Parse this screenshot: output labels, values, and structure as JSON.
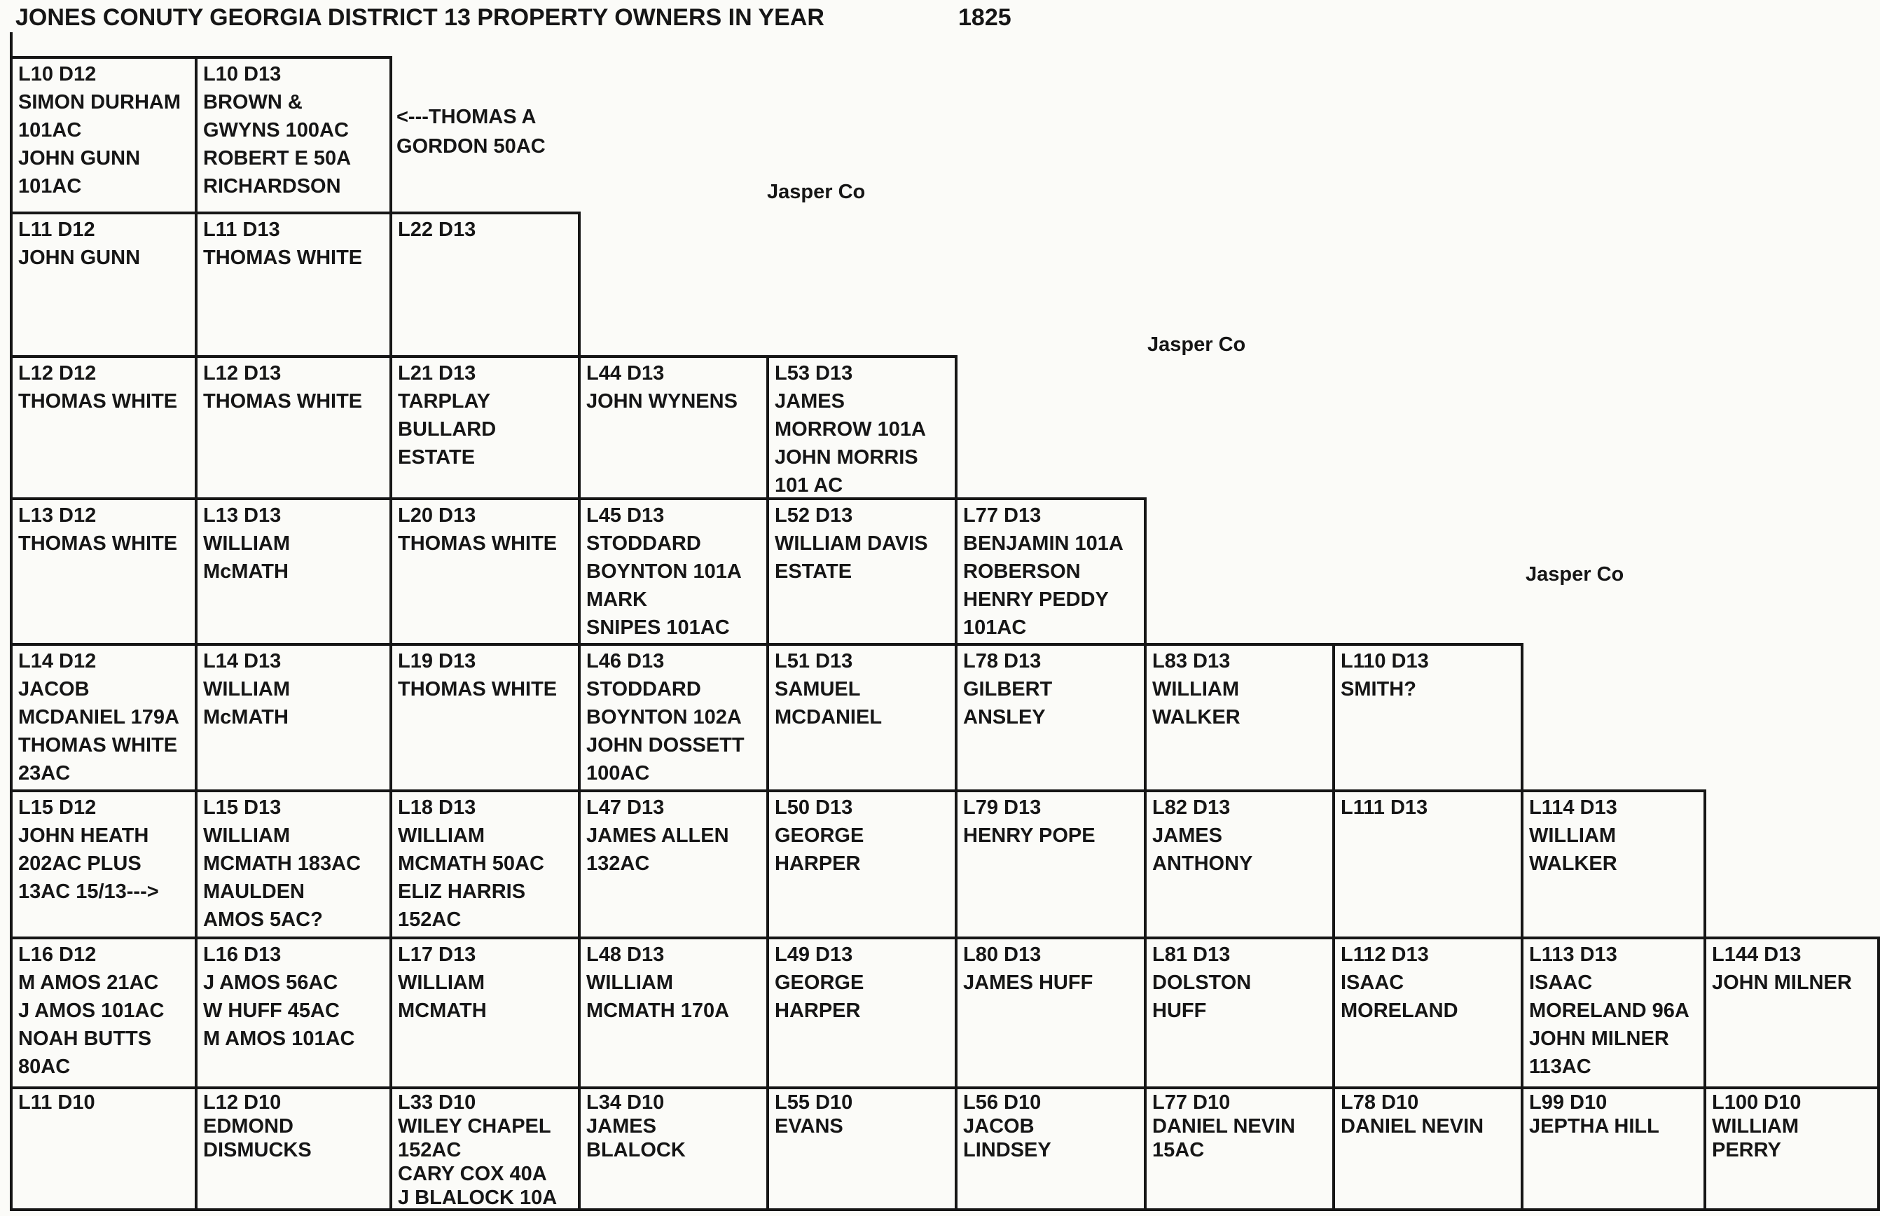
{
  "page": {
    "title": "JONES CONUTY GEORGIA DISTRICT 13 PROPERTY OWNERS IN YEAR",
    "year": "1825"
  },
  "annotations": {
    "gordon_line1": "<---THOMAS A",
    "gordon_line2": "GORDON 50AC",
    "jasper_labels": [
      "Jasper Co",
      "Jasper Co",
      "Jasper Co"
    ]
  },
  "colors": {
    "ink": "#161616",
    "paper": "#fbfbf8"
  },
  "grid": {
    "rows": [
      {
        "cells": [
          {
            "id": "L10 D12",
            "lines": [
              "SIMON DURHAM",
              "101AC",
              "JOHN GUNN",
              "101AC"
            ]
          },
          {
            "id": "L10 D13",
            "lines": [
              "BROWN &",
              "GWYNS 100AC",
              "ROBERT E 50A",
              "RICHARDSON"
            ]
          }
        ]
      },
      {
        "cells": [
          {
            "id": "L11 D12",
            "lines": [
              "JOHN GUNN"
            ]
          },
          {
            "id": "L11 D13",
            "lines": [
              "THOMAS WHITE"
            ]
          },
          {
            "id": "L22 D13",
            "lines": []
          }
        ]
      },
      {
        "cells": [
          {
            "id": "L12 D12",
            "lines": [
              "THOMAS WHITE"
            ]
          },
          {
            "id": "L12 D13",
            "lines": [
              "THOMAS WHITE"
            ]
          },
          {
            "id": "L21 D13",
            "lines": [
              "TARPLAY",
              "BULLARD",
              "ESTATE"
            ]
          },
          {
            "id": "L44 D13",
            "lines": [
              "JOHN WYNENS"
            ]
          },
          {
            "id": "L53 D13",
            "lines": [
              "JAMES",
              "MORROW 101A",
              "JOHN MORRIS",
              "101 AC"
            ]
          }
        ]
      },
      {
        "cells": [
          {
            "id": "L13 D12",
            "lines": [
              "THOMAS WHITE"
            ]
          },
          {
            "id": "L13 D13",
            "lines": [
              "WILLIAM",
              "McMATH"
            ]
          },
          {
            "id": "L20 D13",
            "lines": [
              "THOMAS WHITE"
            ]
          },
          {
            "id": "L45 D13",
            "lines": [
              "STODDARD",
              "BOYNTON 101A",
              "MARK",
              "SNIPES 101AC"
            ]
          },
          {
            "id": "L52 D13",
            "lines": [
              "WILLIAM DAVIS",
              "ESTATE"
            ]
          },
          {
            "id": "L77 D13",
            "lines": [
              "BENJAMIN 101A",
              "ROBERSON",
              "HENRY PEDDY",
              "101AC"
            ]
          }
        ]
      },
      {
        "cells": [
          {
            "id": "L14 D12",
            "lines": [
              "JACOB",
              "MCDANIEL 179A",
              "THOMAS WHITE",
              "23AC"
            ]
          },
          {
            "id": "L14 D13",
            "lines": [
              "WILLIAM",
              "McMATH"
            ]
          },
          {
            "id": "L19 D13",
            "lines": [
              "THOMAS WHITE"
            ]
          },
          {
            "id": "L46 D13",
            "lines": [
              "STODDARD",
              "BOYNTON 102A",
              "JOHN DOSSETT",
              "100AC"
            ]
          },
          {
            "id": "L51 D13",
            "lines": [
              "SAMUEL",
              "MCDANIEL"
            ]
          },
          {
            "id": "L78 D13",
            "lines": [
              "GILBERT",
              "ANSLEY"
            ]
          },
          {
            "id": "L83 D13",
            "lines": [
              "WILLIAM",
              "WALKER"
            ]
          },
          {
            "id": "L110 D13",
            "lines": [
              "SMITH?"
            ]
          }
        ]
      },
      {
        "cells": [
          {
            "id": "L15 D12",
            "lines": [
              "JOHN HEATH",
              "202AC PLUS",
              "13AC 15/13--->"
            ]
          },
          {
            "id": "L15 D13",
            "lines": [
              "WILLIAM",
              "MCMATH 183AC",
              "MAULDEN",
              "AMOS 5AC?"
            ]
          },
          {
            "id": "L18 D13",
            "lines": [
              "WILLIAM",
              "MCMATH 50AC",
              "ELIZ HARRIS",
              "152AC"
            ]
          },
          {
            "id": "L47 D13",
            "lines": [
              "JAMES ALLEN",
              "132AC"
            ]
          },
          {
            "id": "L50 D13",
            "lines": [
              "GEORGE",
              "HARPER"
            ]
          },
          {
            "id": "L79 D13",
            "lines": [
              "HENRY POPE"
            ]
          },
          {
            "id": "L82 D13",
            "lines": [
              "JAMES",
              "ANTHONY"
            ]
          },
          {
            "id": "L111 D13",
            "lines": []
          },
          {
            "id": "L114 D13",
            "lines": [
              "WILLIAM",
              "WALKER"
            ]
          }
        ]
      },
      {
        "cells": [
          {
            "id": "L16 D12",
            "lines": [
              "M AMOS 21AC",
              "J AMOS 101AC",
              "NOAH BUTTS",
              "80AC"
            ]
          },
          {
            "id": "L16 D13",
            "lines": [
              "J AMOS 56AC",
              "W HUFF 45AC",
              "M AMOS 101AC"
            ]
          },
          {
            "id": "L17 D13",
            "lines": [
              "WILLIAM",
              "MCMATH"
            ]
          },
          {
            "id": "L48 D13",
            "lines": [
              "WILLIAM",
              "MCMATH 170A"
            ]
          },
          {
            "id": "L49 D13",
            "lines": [
              "GEORGE",
              "HARPER"
            ]
          },
          {
            "id": "L80 D13",
            "lines": [
              "JAMES HUFF"
            ]
          },
          {
            "id": "L81 D13",
            "lines": [
              "DOLSTON",
              "HUFF"
            ]
          },
          {
            "id": "L112 D13",
            "lines": [
              "ISAAC",
              "MORELAND"
            ]
          },
          {
            "id": "L113 D13",
            "lines": [
              "ISAAC",
              "MORELAND 96A",
              "JOHN MILNER",
              "113AC"
            ]
          },
          {
            "id": "L144 D13",
            "lines": [
              "JOHN MILNER"
            ]
          }
        ]
      },
      {
        "cells": [
          {
            "id": "L11 D10",
            "lines": []
          },
          {
            "id": "L12 D10",
            "lines": [
              "EDMOND",
              "DISMUCKS"
            ]
          },
          {
            "id": "L33 D10",
            "lines": [
              "WILEY CHAPEL",
              "152AC",
              "CARY COX 40A",
              "J BLALOCK 10A"
            ]
          },
          {
            "id": "L34 D10",
            "lines": [
              "JAMES",
              "BLALOCK"
            ]
          },
          {
            "id": "L55 D10",
            "lines": [
              "EVANS"
            ]
          },
          {
            "id": "L56 D10",
            "lines": [
              "JACOB",
              "LINDSEY"
            ]
          },
          {
            "id": "L77 D10",
            "lines": [
              "DANIEL NEVIN",
              "15AC"
            ]
          },
          {
            "id": "L78 D10",
            "lines": [
              "DANIEL NEVIN"
            ]
          },
          {
            "id": "L99 D10",
            "lines": [
              "JEPTHA HILL"
            ]
          },
          {
            "id": "L100 D10",
            "lines": [
              "WILLIAM",
              "PERRY"
            ]
          }
        ]
      }
    ]
  }
}
